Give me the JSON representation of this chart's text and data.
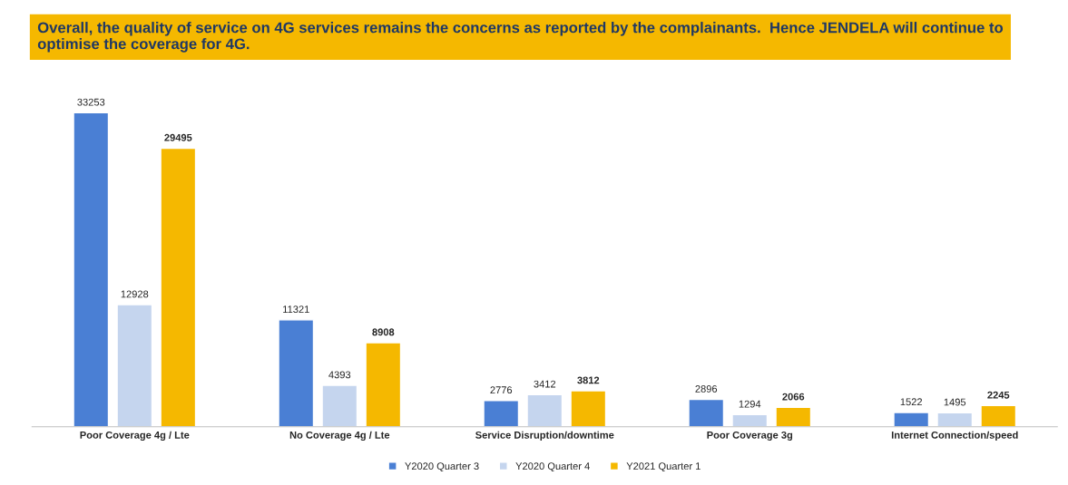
{
  "chart_data": {
    "type": "bar",
    "title": "Overall, the quality of service on 4G services remains the concerns as reported by the complainants.  Hence JENDELA will continue to optimise the coverage for 4G.",
    "categories": [
      "Poor Coverage 4g / Lte",
      "No Coverage 4g / Lte",
      "Service Disruption/downtime",
      "Poor Coverage 3g",
      "Internet Connection/speed"
    ],
    "series": [
      {
        "name": "Y2020 Quarter 3",
        "color": "#4a7fd4",
        "values": [
          33253,
          11321,
          2776,
          2896,
          1522
        ]
      },
      {
        "name": "Y2020 Quarter 4",
        "color": "#c5d5ee",
        "values": [
          12928,
          4393,
          3412,
          1294,
          1495
        ]
      },
      {
        "name": "Y2021 Quarter 1",
        "color": "#f5b800",
        "values": [
          29495,
          8908,
          3812,
          2066,
          2245
        ]
      }
    ],
    "data_labels": true,
    "legend": "bottom",
    "grid": false,
    "tick_labels": "x"
  }
}
